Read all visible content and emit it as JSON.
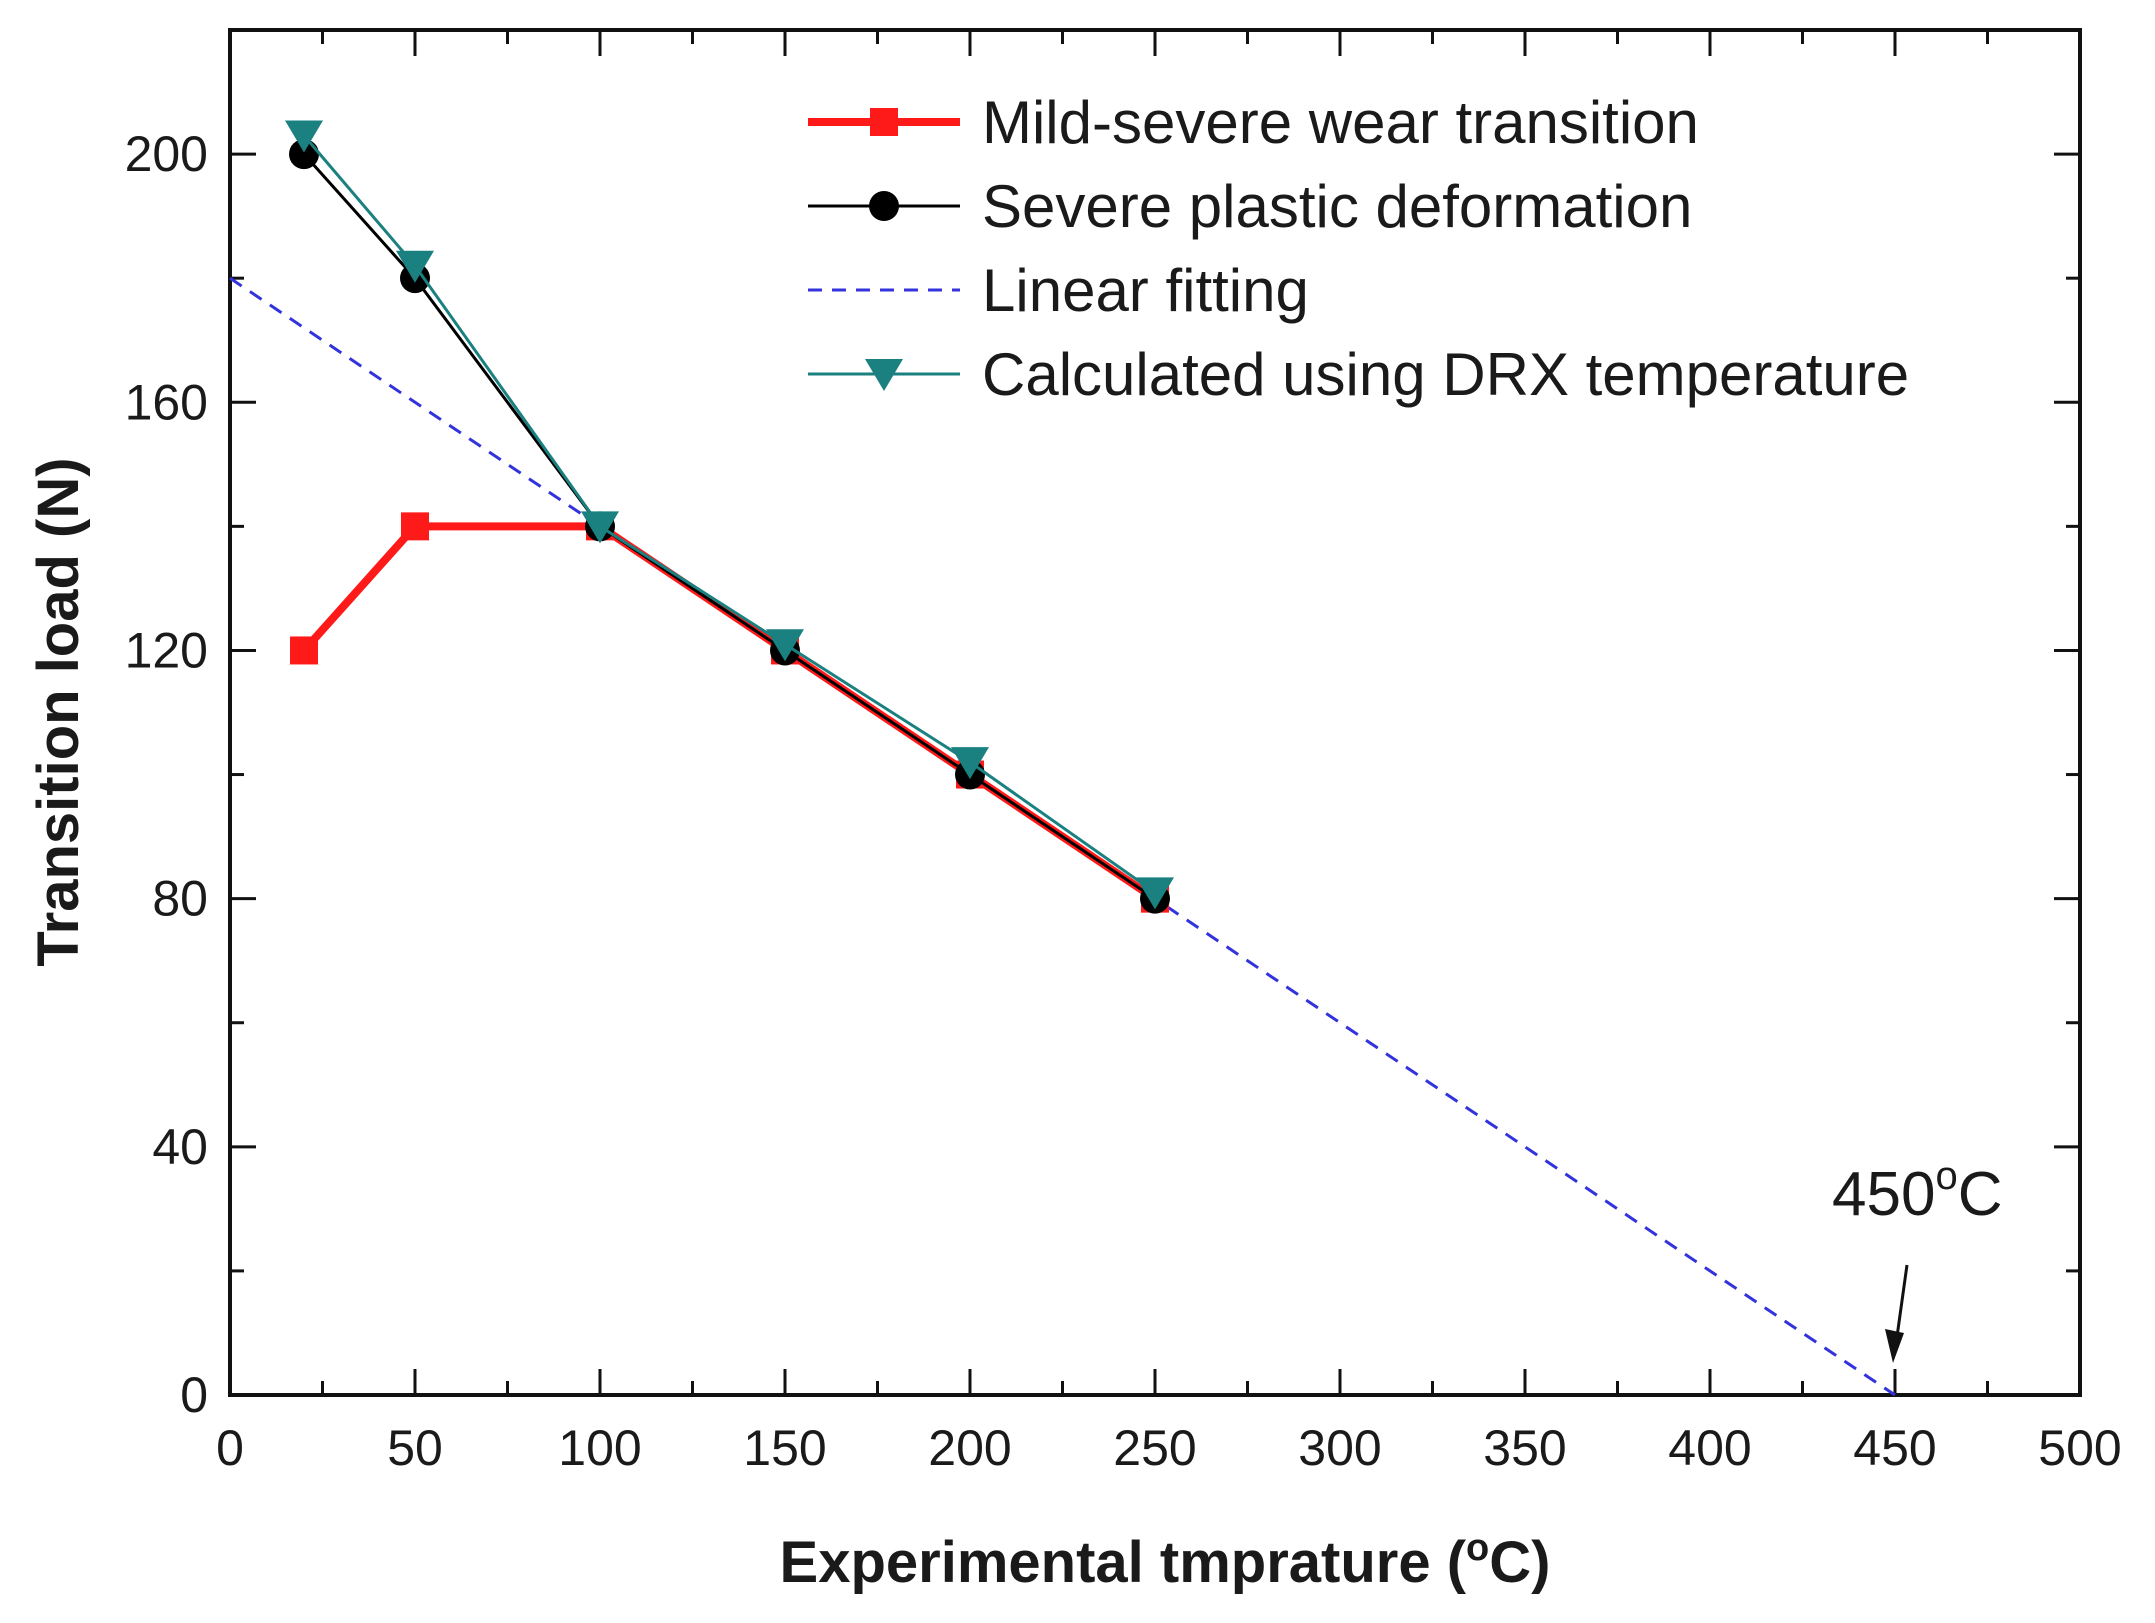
{
  "chart_data": {
    "type": "line",
    "title": "",
    "xlabel": "Experimental tmprature (",
    "xlabel_unit_sup": "o",
    "xlabel_unit_tail": "C)",
    "ylabel": "Transition load (N)",
    "xlim": [
      0,
      500
    ],
    "ylim": [
      0,
      220
    ],
    "x_ticks": [
      0,
      50,
      100,
      150,
      200,
      250,
      300,
      350,
      400,
      450,
      500
    ],
    "x_tick_labels": [
      "0",
      "50",
      "100",
      "150",
      "200",
      "250",
      "300",
      "350",
      "400",
      "450",
      "500"
    ],
    "y_ticks": [
      0,
      40,
      80,
      120,
      160,
      200
    ],
    "y_tick_labels": [
      "0",
      "40",
      "80",
      "120",
      "160",
      "200"
    ],
    "legend_position": "top-right",
    "series": [
      {
        "name": "Mild-severe wear transition",
        "color": "#ff1a1a",
        "marker": "square",
        "line_style": "solid-thick",
        "x": [
          20,
          50,
          100,
          150,
          200,
          250
        ],
        "y": [
          120,
          140,
          140,
          120,
          100,
          80
        ]
      },
      {
        "name": "Severe plastic deformation",
        "color": "#000000",
        "marker": "circle",
        "line_style": "solid",
        "x": [
          20,
          50,
          100,
          150,
          200,
          250
        ],
        "y": [
          200,
          180,
          140,
          120,
          100,
          80
        ]
      },
      {
        "name": "Linear fitting",
        "color": "#3333dd",
        "marker": "none",
        "line_style": "dashed",
        "x": [
          0,
          450
        ],
        "y": [
          180,
          0
        ]
      },
      {
        "name": "Calculated using DRX temperature",
        "color": "#1a8080",
        "marker": "triangle-down",
        "line_style": "solid",
        "x": [
          20,
          50,
          100,
          150,
          200,
          250
        ],
        "y": [
          203,
          182,
          140,
          121,
          102,
          81
        ]
      }
    ],
    "annotation": {
      "text": "450",
      "sup": "o",
      "tail": "C",
      "target_x": 450,
      "target_y": 0
    }
  }
}
